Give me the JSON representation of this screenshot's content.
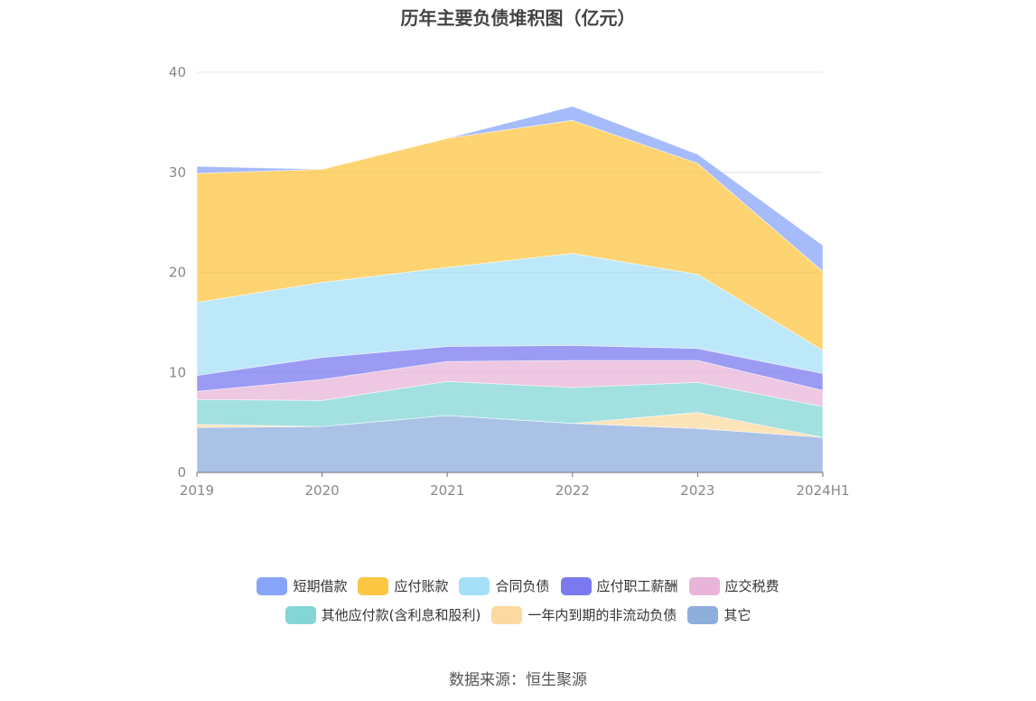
{
  "title": "历年主要负债堆积图（亿元）",
  "source": "数据来源：恒生聚源",
  "chart_data": {
    "type": "area",
    "stacked": true,
    "categories": [
      "2019",
      "2020",
      "2021",
      "2022",
      "2023",
      "2024H1"
    ],
    "ylim": [
      0,
      40
    ],
    "yticks": [
      0,
      10,
      20,
      30,
      40
    ],
    "grid": true,
    "legend_position": "bottom",
    "series": [
      {
        "name": "其它",
        "color": "#8eaedc",
        "values": [
          4.5,
          4.6,
          5.7,
          4.9,
          4.4,
          3.5
        ]
      },
      {
        "name": "一年内到期的非流动负债",
        "color": "#fcd9a0",
        "values": [
          0.3,
          0.0,
          0.0,
          0.0,
          1.6,
          0.0
        ]
      },
      {
        "name": "其他应付款(含利息和股利)",
        "color": "#84d5d6",
        "values": [
          2.5,
          2.6,
          3.4,
          3.6,
          3.0,
          3.1
        ]
      },
      {
        "name": "应交税费",
        "color": "#e8b4d8",
        "values": [
          0.8,
          2.1,
          2.0,
          2.7,
          2.2,
          1.6
        ]
      },
      {
        "name": "应付职工薪酬",
        "color": "#7b79ef",
        "values": [
          1.6,
          2.2,
          1.5,
          1.5,
          1.2,
          1.7
        ]
      },
      {
        "name": "合同负债",
        "color": "#a6e0f8",
        "values": [
          7.3,
          7.5,
          7.9,
          9.2,
          7.4,
          2.3
        ]
      },
      {
        "name": "应付账款",
        "color": "#fdc643",
        "values": [
          12.9,
          11.3,
          12.9,
          13.3,
          11.1,
          7.9
        ]
      },
      {
        "name": "短期借款",
        "color": "#87a4f8",
        "values": [
          0.7,
          0.0,
          0.0,
          1.4,
          0.9,
          2.6
        ]
      }
    ]
  },
  "legend": {
    "row1": [
      {
        "name": "短期借款",
        "color": "#87a4f8"
      },
      {
        "name": "应付账款",
        "color": "#fdc643"
      },
      {
        "name": "合同负债",
        "color": "#a6e0f8"
      },
      {
        "name": "应付职工薪酬",
        "color": "#7b79ef"
      },
      {
        "name": "应交税费",
        "color": "#e8b4d8"
      }
    ],
    "row2": [
      {
        "name": "其他应付款(含利息和股利)",
        "color": "#84d5d6"
      },
      {
        "name": "一年内到期的非流动负债",
        "color": "#fcd9a0"
      },
      {
        "name": "其它",
        "color": "#8eaedc"
      }
    ]
  }
}
